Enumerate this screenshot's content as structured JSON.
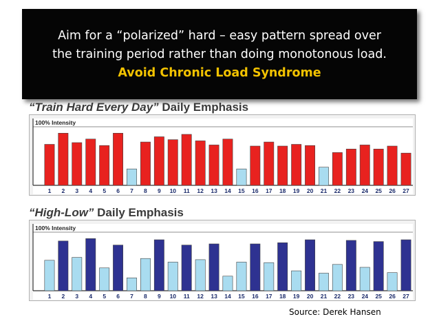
{
  "banner": {
    "line1": "Aim for a “polarized” hard – easy pattern spread over",
    "line2": "the training period rather than doing monotonous load.",
    "line3": "Avoid Chronic Load Syndrome"
  },
  "colors": {
    "hard_red": "#e8221f",
    "easy_light_blue": "#a9dcf0",
    "hard_navy": "#2e3291",
    "easy_blue2": "#a9dcf0",
    "highlight": "#f2c200"
  },
  "source": "Source: Derek Hansen",
  "chart_data": [
    {
      "type": "bar",
      "title_quoted": "“Train Hard Every Day”",
      "title_rest": "Daily Emphasis",
      "reference_label": "100% Intensity",
      "categories": [
        "1",
        "2",
        "3",
        "4",
        "5",
        "6",
        "7",
        "8",
        "9",
        "10",
        "11",
        "12",
        "13",
        "14",
        "15",
        "16",
        "17",
        "18",
        "19",
        "20",
        "21",
        "22",
        "23",
        "24",
        "25",
        "26",
        "27"
      ],
      "values": [
        0.7,
        0.89,
        0.73,
        0.79,
        0.68,
        0.89,
        0.28,
        0.74,
        0.83,
        0.78,
        0.87,
        0.76,
        0.69,
        0.79,
        0.28,
        0.67,
        0.74,
        0.67,
        0.7,
        0.68,
        0.31,
        0.56,
        0.62,
        0.69,
        0.62,
        0.67,
        0.55
      ],
      "bar_types": [
        "hard",
        "hard",
        "hard",
        "hard",
        "hard",
        "hard",
        "easy",
        "hard",
        "hard",
        "hard",
        "hard",
        "hard",
        "hard",
        "hard",
        "easy",
        "hard",
        "hard",
        "hard",
        "hard",
        "hard",
        "easy",
        "hard",
        "hard",
        "hard",
        "hard",
        "hard",
        "hard"
      ],
      "ylim": [
        0,
        1
      ],
      "grid": false
    },
    {
      "type": "bar",
      "title_quoted": "“High-Low”",
      "title_rest": "Daily Emphasis",
      "reference_label": "100% Intensity",
      "categories": [
        "1",
        "2",
        "3",
        "4",
        "5",
        "6",
        "7",
        "8",
        "9",
        "10",
        "11",
        "12",
        "13",
        "14",
        "15",
        "16",
        "17",
        "18",
        "19",
        "20",
        "21",
        "22",
        "23",
        "24",
        "25",
        "26",
        "27"
      ],
      "values": [
        0.52,
        0.85,
        0.57,
        0.89,
        0.39,
        0.78,
        0.22,
        0.55,
        0.87,
        0.49,
        0.78,
        0.53,
        0.8,
        0.25,
        0.49,
        0.8,
        0.48,
        0.82,
        0.34,
        0.87,
        0.3,
        0.45,
        0.86,
        0.4,
        0.84,
        0.31,
        0.87
      ],
      "bar_types": [
        "easy",
        "hard",
        "easy",
        "hard",
        "easy",
        "hard",
        "easy",
        "easy",
        "hard",
        "easy",
        "hard",
        "easy",
        "hard",
        "easy",
        "easy",
        "hard",
        "easy",
        "hard",
        "easy",
        "hard",
        "easy",
        "easy",
        "hard",
        "easy",
        "hard",
        "easy",
        "hard"
      ],
      "ylim": [
        0,
        1
      ],
      "grid": false
    }
  ]
}
